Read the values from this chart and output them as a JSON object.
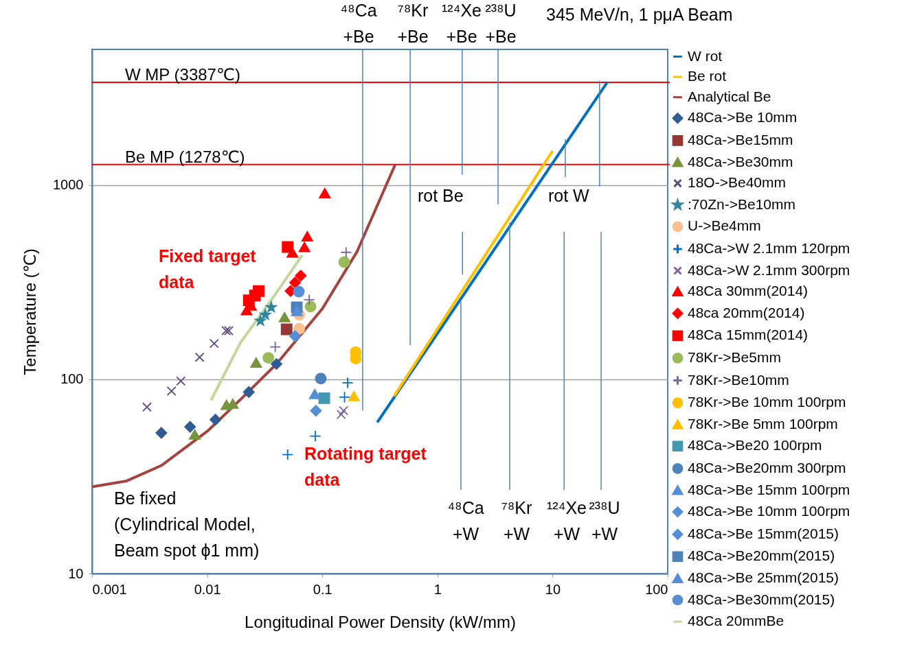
{
  "chart_data": {
    "type": "scatter",
    "title": null,
    "xlabel": "Longitudinal  Power Density (kW/mm)",
    "ylabel": "Temperature (℃)",
    "log": "xy",
    "xlim": [
      0.001,
      100
    ],
    "xticks": [
      0.001,
      0.01,
      0.1,
      1,
      10,
      100
    ],
    "ylim": [
      10,
      5000
    ],
    "yticks": [
      10,
      100,
      1000
    ],
    "grid": "y",
    "legend": "right",
    "ref_lines": [
      {
        "axis": "y",
        "value": 3387,
        "label": "W MP (3387℃)",
        "color": "#ff0000"
      },
      {
        "axis": "y",
        "value": 1278,
        "label": "Be MP (1278℃)",
        "color": "#ff0000"
      }
    ],
    "annotations": [
      "345 MeV/n, 1 pμA Beam",
      "⁴⁸Ca\n+Be",
      "⁷⁸Kr\n+Be",
      "¹²⁴Xe\n+Be",
      "²³⁸U\n+Be",
      "rot Be",
      "rot W",
      "⁴⁸Ca\n+W",
      "⁷⁸Kr\n+W",
      "¹²⁴Xe\n+W",
      "²³⁸U\n+W",
      "Fixed target\ndata",
      "Rotating target\ndata",
      "Be fixed\n(Cylindrical Model,\nBeam spot ϕ1 mm)"
    ],
    "series": [
      {
        "name": "W rot",
        "type": "line",
        "color": "#0070c0",
        "x": [
          0.3,
          30
        ],
        "values": [
          60,
          3400
        ]
      },
      {
        "name": "Be rot",
        "type": "line",
        "color": "#ffc000",
        "x": [
          0.42,
          10
        ],
        "values": [
          82,
          1500
        ]
      },
      {
        "name": "Analytical Be",
        "type": "line",
        "color": "#a5433f",
        "x": [
          0.001,
          0.002,
          0.004,
          0.01,
          0.02,
          0.04,
          0.1,
          0.2,
          0.43
        ],
        "values": [
          28,
          30,
          36,
          54,
          80,
          120,
          231,
          454,
          1278
        ]
      },
      {
        "name": "48Ca->Be 10mm",
        "marker": "diamond",
        "color": "#2f5d91",
        "x": [
          0.004,
          0.0071,
          0.0118,
          0.023,
          0.04
        ],
        "values": [
          53,
          57,
          62,
          86,
          120
        ]
      },
      {
        "name": "48Ca->Be15mm",
        "marker": "square",
        "color": "#953735",
        "x": [
          0.049
        ],
        "values": [
          181
        ]
      },
      {
        "name": "48Ca->Be30mm",
        "marker": "triangle",
        "color": "#77933c",
        "x": [
          0.0078,
          0.0147,
          0.0167,
          0.0266,
          0.047
        ],
        "values": [
          52,
          74,
          75,
          122,
          209
        ]
      },
      {
        "name": "18O->Be40mm",
        "marker": "x",
        "color": "#5f497a",
        "x": [
          0.003,
          0.0049,
          0.0059,
          0.0086,
          0.0115,
          0.0146,
          0.0154
        ],
        "values": [
          72,
          87,
          98,
          130,
          153,
          178,
          178
        ]
      },
      {
        "name": ":70Zn->Be10mm",
        "marker": "star",
        "color": "#31859c",
        "x": [
          0.029,
          0.032,
          0.036
        ],
        "values": [
          200,
          215,
          235
        ]
      },
      {
        "name": "U->Be4mm",
        "marker": "circle",
        "color": "#fac090",
        "x": [
          0.063,
          0.063
        ],
        "values": [
          182,
          215
        ]
      },
      {
        "name": "48Ca->W 2.1mm 120rpm",
        "marker": "cross",
        "color": "#0070c0",
        "x": [
          0.05,
          0.087,
          0.156,
          0.166
        ],
        "values": [
          41,
          51,
          81,
          96
        ]
      },
      {
        "name": "48Ca->W 2.1mm 300rpm",
        "marker": "x",
        "color": "#8064a2",
        "x": [
          0.146,
          0.153
        ],
        "values": [
          66,
          69
        ]
      },
      {
        "name": "48Ca 30mm(2014)",
        "marker": "triangle",
        "color": "#ff0000",
        "x": [
          0.022,
          0.024,
          0.055,
          0.07,
          0.074,
          0.105
        ],
        "values": [
          227,
          240,
          450,
          480,
          545,
          910
        ]
      },
      {
        "name": "48ca 20mm(2014)",
        "marker": "diamond",
        "color": "#ff0000",
        "x": [
          0.053,
          0.058,
          0.065
        ],
        "values": [
          285,
          315,
          342
        ]
      },
      {
        "name": "48Ca 15mm(2014)",
        "marker": "square",
        "color": "#ff0000",
        "x": [
          0.023,
          0.026,
          0.028,
          0.05
        ],
        "values": [
          255,
          270,
          285,
          480
        ]
      },
      {
        "name": "78Kr->Be5mm",
        "marker": "circle",
        "color": "#9bbb59",
        "x": [
          0.034,
          0.079,
          0.155
        ],
        "values": [
          129,
          237,
          402
        ]
      },
      {
        "name": "78Kr->Be10mm",
        "marker": "cross",
        "color": "#8064a2",
        "x": [
          0.039,
          0.077,
          0.161
        ],
        "values": [
          147,
          257,
          451
        ]
      },
      {
        "name": "78Kr->Be 10mm 100rpm",
        "marker": "circle",
        "color": "#ffc000",
        "x": [
          0.195,
          0.195
        ],
        "values": [
          128,
          138
        ]
      },
      {
        "name": "78Kr->Be 5mm 100rpm",
        "marker": "triangle",
        "color": "#ffc000",
        "x": [
          0.188
        ],
        "values": [
          82
        ]
      },
      {
        "name": "48Ca->Be20 100rpm",
        "marker": "square",
        "color": "#4198af",
        "x": [
          0.104
        ],
        "values": [
          80
        ]
      },
      {
        "name": "48Ca->Be20mm 300rpm",
        "marker": "circle",
        "color": "#4f81bd",
        "x": [
          0.097
        ],
        "values": [
          101
        ]
      },
      {
        "name": "48Ca->Be 15mm 100rpm",
        "marker": "triangle",
        "color": "#558ed5",
        "x": [
          0.086
        ],
        "values": [
          84
        ]
      },
      {
        "name": "48Ca->Be 10mm 100rpm",
        "marker": "diamond",
        "color": "#558ed5",
        "x": [
          0.088
        ],
        "values": [
          69
        ]
      },
      {
        "name": "48Ca->Be 15mm(2015)",
        "marker": "diamond",
        "color": "#558ed5",
        "x": [
          0.058
        ],
        "values": [
          167
        ]
      },
      {
        "name": "48Ca->Be20mm(2015)",
        "marker": "square",
        "color": "#4f81bd",
        "x": [
          0.06
        ],
        "values": [
          235
        ]
      },
      {
        "name": "48Ca->Be 25mm(2015)",
        "marker": "triangle",
        "color": "#558ed5",
        "x": [
          0.06
        ],
        "values": [
          225
        ]
      },
      {
        "name": "48Ca->Be30mm(2015)",
        "marker": "circle",
        "color": "#558ed5",
        "x": [
          0.0625
        ],
        "values": [
          283
        ]
      },
      {
        "name": "48Ca 20mmBe",
        "type": "line",
        "color": "#c3d69b",
        "x": [
          0.0108,
          0.0194,
          0.0387,
          0.067
        ],
        "values": [
          78,
          154,
          272,
          436
        ]
      },
      {
        "type": "line",
        "color": "#4f81bd",
        "x": [
          0.224,
          0.224
        ],
        "values": [
          5000,
          69
        ]
      },
      {
        "type": "line",
        "color": "#4f81bd",
        "x": [
          0.58,
          0.58
        ],
        "values": [
          5000,
          150
        ]
      },
      {
        "type": "line",
        "color": "#4f81bd",
        "x": [
          1.64,
          1.64
        ],
        "values": [
          5000,
          1130
        ]
      },
      {
        "type": "line",
        "color": "#4f81bd",
        "x": [
          3.36,
          3.36
        ],
        "values": [
          5000,
          796
        ]
      },
      {
        "type": "line",
        "color": "#4f81bd",
        "x": [
          1.65,
          1.65
        ],
        "values": [
          575,
          346
        ]
      },
      {
        "type": "line",
        "color": "#4f81bd",
        "x": [
          1.6,
          1.6
        ],
        "values": [
          251,
          27
        ]
      },
      {
        "type": "line",
        "color": "#4f81bd",
        "x": [
          4.24,
          4.24
        ],
        "values": [
          640,
          27
        ]
      },
      {
        "type": "line",
        "color": "#4f81bd",
        "x": [
          12.6,
          12.6
        ],
        "values": [
          575,
          27
        ]
      },
      {
        "type": "line",
        "color": "#4f81bd",
        "x": [
          26.4,
          26.4
        ],
        "values": [
          575,
          27
        ]
      },
      {
        "type": "line",
        "color": "#4f81bd",
        "x": [
          12.9,
          12.9
        ],
        "values": [
          1726,
          1102
        ]
      },
      {
        "type": "line",
        "color": "#4f81bd",
        "x": [
          25.6,
          25.6
        ],
        "values": [
          3443,
          984
        ]
      }
    ]
  }
}
